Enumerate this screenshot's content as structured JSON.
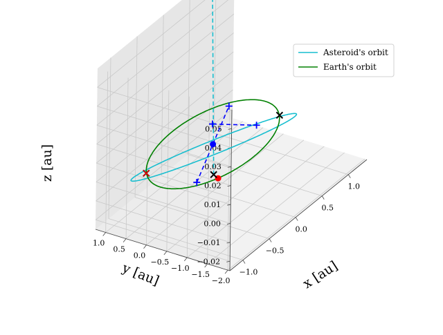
{
  "chart_data": {
    "type": "line",
    "projection": "3d",
    "title": "",
    "xlabel": "x [au]",
    "ylabel": "y [au]",
    "zlabel": "z [au]",
    "xlim": [
      -1.25,
      1.35
    ],
    "ylim": [
      -2.05,
      1.25
    ],
    "zlim": [
      -0.025,
      0.06
    ],
    "x_ticks": [
      "−1.0",
      "−0.5",
      "0.0",
      "0.5",
      "1.0"
    ],
    "x_tick_values": [
      -1.0,
      -0.5,
      0.0,
      0.5,
      1.0
    ],
    "y_ticks": [
      "1.0",
      "0.5",
      "0.0",
      "−0.5",
      "−1.0",
      "−1.5",
      "−2.0"
    ],
    "y_tick_values": [
      1.0,
      0.5,
      0.0,
      -0.5,
      -1.0,
      -1.5,
      -2.0
    ],
    "z_ticks": [
      "0.05",
      "0.04",
      "0.03",
      "0.02",
      "0.01",
      "0.00",
      "−0.01",
      "−0.02"
    ],
    "z_tick_values": [
      0.05,
      0.04,
      0.03,
      0.02,
      0.01,
      0.0,
      -0.01,
      -0.02
    ],
    "grid": true,
    "legend_position": "top-right",
    "series": [
      {
        "name": "Asteroid's orbit",
        "kind": "orbit",
        "color": "#17becf",
        "a": 1.4,
        "e": 0.46,
        "inclination_deg": 1.7,
        "perihelion_direction": [
          0.6,
          0.8
        ]
      },
      {
        "name": "Earth's orbit",
        "kind": "orbit",
        "color": "#008000",
        "a": 1.0,
        "e": 0.0
      }
    ],
    "segments": [
      {
        "color": "#17becf",
        "style": "dashed",
        "from": [
          -0.51,
          -0.68,
          0.0
        ],
        "to": [
          1.05,
          1.4,
          0.05
        ]
      },
      {
        "color": "#0000ff",
        "style": "dashed",
        "from": [
          -0.73,
          -0.55,
          0.0
        ],
        "to": [
          0.73,
          0.55,
          0.0
        ]
      },
      {
        "color": "#0000ff",
        "style": "dashed",
        "from": [
          0.34,
          0.45,
          0.0
        ],
        "to": [
          0.55,
          -0.36,
          0.0
        ]
      }
    ],
    "points": [
      {
        "marker": "dot",
        "color": "#0000ff",
        "x": 0.0,
        "y": 0.0,
        "z": 0.0
      },
      {
        "marker": "dot",
        "color": "#ff0000",
        "x": -0.55,
        "y": -0.84,
        "z": 0.0
      },
      {
        "marker": "plus",
        "color": "#0000ff",
        "x": -0.73,
        "y": -0.55,
        "z": 0.0
      },
      {
        "marker": "plus",
        "color": "#0000ff",
        "x": 0.73,
        "y": 0.55,
        "z": 0.0
      },
      {
        "marker": "plus",
        "color": "#0000ff",
        "x": 0.34,
        "y": 0.45,
        "z": 0.0
      },
      {
        "marker": "plus",
        "color": "#0000ff",
        "x": 0.55,
        "y": -0.36,
        "z": 0.0
      },
      {
        "marker": "x",
        "color": "#000000",
        "x": -0.51,
        "y": -0.68,
        "z": 0.0
      },
      {
        "marker": "x",
        "color": "#000000",
        "x": 0.84,
        "y": -0.55,
        "z": 0.0
      },
      {
        "marker": "x",
        "color": "#000000",
        "x": -0.84,
        "y": 0.55,
        "z": 0.0
      },
      {
        "marker": "x",
        "color": "#000000",
        "x": 1.05,
        "y": 1.4,
        "z": 0.05
      },
      {
        "marker": "x",
        "color": "#ff0000",
        "x": -0.84,
        "y": 0.55,
        "z": 0.0
      },
      {
        "marker": "x",
        "color": "#ff0000",
        "x": 1.05,
        "y": 1.4,
        "z": 0.05
      }
    ]
  }
}
